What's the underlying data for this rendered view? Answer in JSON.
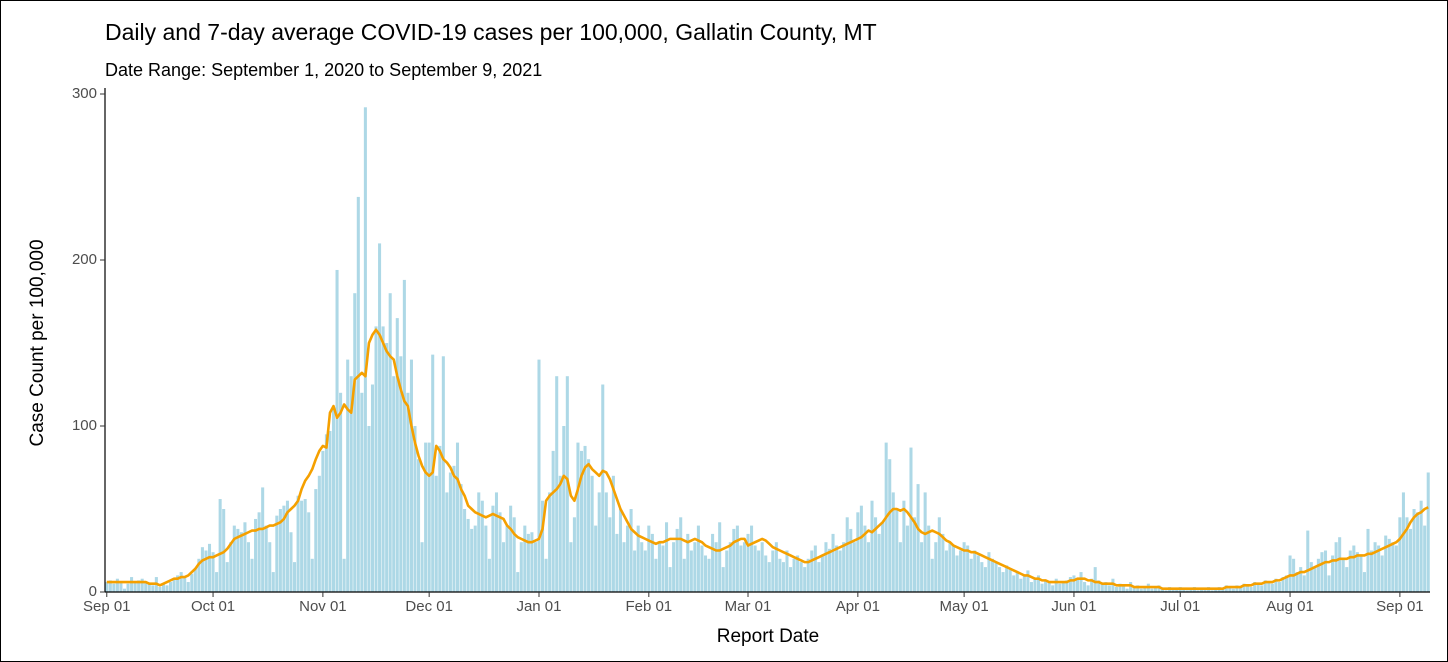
{
  "chart_data": {
    "type": "bar",
    "title": "Daily and 7-day average COVID-19 cases per 100,000, Gallatin County, MT",
    "subtitle": "Date Range: September 1, 2020 to September 9, 2021",
    "x_label": "Report Date",
    "y_label": "Case Count per 100,000",
    "ylim": [
      0,
      300
    ],
    "yticks": [
      0,
      100,
      200,
      300
    ],
    "categories": [
      "Sep 01",
      null,
      null,
      null,
      null,
      null,
      null,
      null,
      null,
      null,
      null,
      null,
      null,
      null,
      null,
      null,
      null,
      null,
      null,
      null,
      null,
      null,
      null,
      null,
      null,
      null,
      null,
      null,
      null,
      null,
      "Oct 01",
      null,
      null,
      null,
      null,
      null,
      null,
      null,
      null,
      null,
      null,
      null,
      null,
      null,
      null,
      null,
      null,
      null,
      null,
      null,
      null,
      null,
      null,
      null,
      null,
      null,
      null,
      null,
      null,
      null,
      null,
      "Nov 01",
      null,
      null,
      null,
      null,
      null,
      null,
      null,
      null,
      null,
      null,
      null,
      null,
      null,
      null,
      null,
      null,
      null,
      null,
      null,
      null,
      null,
      null,
      null,
      null,
      null,
      null,
      null,
      null,
      null,
      "Dec 01",
      null,
      null,
      null,
      null,
      null,
      null,
      null,
      null,
      null,
      null,
      null,
      null,
      null,
      null,
      null,
      null,
      null,
      null,
      null,
      null,
      null,
      null,
      null,
      null,
      null,
      null,
      null,
      null,
      null,
      null,
      "Jan 01",
      null,
      null,
      null,
      null,
      null,
      null,
      null,
      null,
      null,
      null,
      null,
      null,
      null,
      null,
      null,
      null,
      null,
      null,
      null,
      null,
      null,
      null,
      null,
      null,
      null,
      null,
      null,
      null,
      null,
      null,
      "Feb 01",
      null,
      null,
      null,
      null,
      null,
      null,
      null,
      null,
      null,
      null,
      null,
      null,
      null,
      null,
      null,
      null,
      null,
      null,
      null,
      null,
      null,
      null,
      null,
      null,
      null,
      null,
      null,
      "Mar 01",
      null,
      null,
      null,
      null,
      null,
      null,
      null,
      null,
      null,
      null,
      null,
      null,
      null,
      null,
      null,
      null,
      null,
      null,
      null,
      null,
      null,
      null,
      null,
      null,
      null,
      null,
      null,
      null,
      null,
      null,
      "Apr 01",
      null,
      null,
      null,
      null,
      null,
      null,
      null,
      null,
      null,
      null,
      null,
      null,
      null,
      null,
      null,
      null,
      null,
      null,
      null,
      null,
      null,
      null,
      null,
      null,
      null,
      null,
      null,
      null,
      null,
      "May 01",
      null,
      null,
      null,
      null,
      null,
      null,
      null,
      null,
      null,
      null,
      null,
      null,
      null,
      null,
      null,
      null,
      null,
      null,
      null,
      null,
      null,
      null,
      null,
      null,
      null,
      null,
      null,
      null,
      null,
      null,
      "Jun 01",
      null,
      null,
      null,
      null,
      null,
      null,
      null,
      null,
      null,
      null,
      null,
      null,
      null,
      null,
      null,
      null,
      null,
      null,
      null,
      null,
      null,
      null,
      null,
      null,
      null,
      null,
      null,
      null,
      null,
      "Jul 01",
      null,
      null,
      null,
      null,
      null,
      null,
      null,
      null,
      null,
      null,
      null,
      null,
      null,
      null,
      null,
      null,
      null,
      null,
      null,
      null,
      null,
      null,
      null,
      null,
      null,
      null,
      null,
      null,
      null,
      null,
      "Aug 01",
      null,
      null,
      null,
      null,
      null,
      null,
      null,
      null,
      null,
      null,
      null,
      null,
      null,
      null,
      null,
      null,
      null,
      null,
      null,
      null,
      null,
      null,
      null,
      null,
      null,
      null,
      null,
      null,
      null,
      null,
      "Sep 01",
      null,
      null,
      null,
      null,
      null,
      null,
      null,
      null
    ],
    "series": [
      {
        "type": "bar",
        "color": "#add8e6",
        "values": [
          6,
          7,
          5,
          8,
          6,
          2,
          5,
          9,
          6,
          7,
          8,
          6,
          5,
          4,
          9,
          3,
          5,
          4,
          6,
          8,
          10,
          12,
          9,
          6,
          11,
          14,
          20,
          27,
          25,
          29,
          24,
          12,
          56,
          50,
          18,
          30,
          40,
          38,
          36,
          42,
          30,
          20,
          44,
          48,
          63,
          40,
          30,
          12,
          46,
          50,
          52,
          55,
          36,
          18,
          58,
          55,
          56,
          48,
          20,
          62,
          70,
          85,
          95,
          97,
          110,
          194,
          120,
          20,
          140,
          130,
          180,
          238,
          120,
          292,
          100,
          125,
          160,
          210,
          160,
          150,
          180,
          130,
          165,
          142,
          188,
          120,
          140,
          100,
          80,
          30,
          90,
          90,
          143,
          70,
          88,
          142,
          60,
          72,
          76,
          90,
          65,
          50,
          44,
          38,
          40,
          60,
          55,
          40,
          20,
          52,
          60,
          48,
          30,
          40,
          52,
          45,
          12,
          30,
          40,
          35,
          36,
          30,
          140,
          55,
          20,
          60,
          85,
          130,
          70,
          100,
          130,
          30,
          45,
          90,
          85,
          88,
          80,
          70,
          40,
          60,
          125,
          60,
          45,
          70,
          35,
          50,
          30,
          40,
          50,
          25,
          40,
          30,
          25,
          40,
          35,
          20,
          30,
          28,
          42,
          15,
          30,
          38,
          45,
          20,
          35,
          25,
          30,
          40,
          28,
          22,
          20,
          35,
          30,
          42,
          15,
          25,
          30,
          38,
          40,
          28,
          30,
          35,
          40,
          28,
          25,
          30,
          22,
          18,
          25,
          30,
          20,
          18,
          25,
          15,
          20,
          22,
          18,
          15,
          20,
          25,
          28,
          18,
          22,
          30,
          26,
          35,
          28,
          25,
          30,
          45,
          38,
          30,
          48,
          52,
          40,
          30,
          55,
          45,
          35,
          42,
          90,
          80,
          60,
          50,
          30,
          55,
          40,
          87,
          45,
          65,
          30,
          60,
          40,
          20,
          30,
          45,
          35,
          25,
          30,
          28,
          22,
          25,
          30,
          28,
          20,
          25,
          22,
          18,
          15,
          24,
          20,
          18,
          15,
          12,
          16,
          14,
          10,
          12,
          8,
          10,
          13,
          6,
          8,
          10,
          5,
          7,
          6,
          4,
          8,
          5,
          6,
          7,
          9,
          10,
          8,
          12,
          6,
          4,
          8,
          15,
          7,
          5,
          6,
          4,
          8,
          3,
          5,
          4,
          2,
          6,
          3,
          4,
          2,
          3,
          5,
          2,
          3,
          4,
          2,
          1,
          3,
          2,
          2,
          3,
          2,
          1,
          2,
          3,
          1,
          2,
          2,
          3,
          1,
          2,
          3,
          2,
          4,
          3,
          2,
          4,
          3,
          5,
          4,
          3,
          6,
          5,
          4,
          7,
          6,
          5,
          8,
          6,
          9,
          10,
          22,
          20,
          12,
          15,
          10,
          37,
          18,
          15,
          20,
          24,
          25,
          10,
          22,
          30,
          33,
          20,
          15,
          25,
          28,
          24,
          22,
          12,
          38,
          25,
          30,
          28,
          22,
          34,
          32,
          30,
          28,
          45,
          60,
          45,
          38,
          50,
          48,
          55,
          40,
          72
        ]
      },
      {
        "type": "line",
        "color": "#f5a000",
        "values": [
          6,
          6,
          6,
          6,
          6,
          6,
          6,
          6,
          6,
          6,
          6,
          6,
          5,
          5,
          5,
          4,
          5,
          6,
          7,
          8,
          8,
          9,
          9,
          10,
          12,
          14,
          17,
          19,
          20,
          21,
          21,
          22,
          23,
          24,
          26,
          29,
          32,
          33,
          34,
          35,
          36,
          37,
          37,
          38,
          38,
          39,
          40,
          40,
          41,
          42,
          44,
          48,
          50,
          52,
          55,
          62,
          67,
          70,
          74,
          80,
          85,
          88,
          87,
          108,
          112,
          105,
          108,
          113,
          110,
          108,
          128,
          130,
          132,
          130,
          150,
          155,
          158,
          155,
          150,
          145,
          142,
          140,
          130,
          122,
          115,
          112,
          100,
          90,
          82,
          76,
          72,
          70,
          72,
          88,
          85,
          80,
          78,
          75,
          70,
          68,
          62,
          58,
          52,
          50,
          48,
          47,
          46,
          45,
          46,
          47,
          46,
          45,
          44,
          40,
          38,
          35,
          33,
          32,
          31,
          30,
          30,
          31,
          32,
          38,
          55,
          58,
          60,
          62,
          65,
          70,
          68,
          58,
          55,
          62,
          70,
          75,
          77,
          74,
          72,
          70,
          73,
          72,
          68,
          62,
          56,
          50,
          46,
          42,
          38,
          36,
          34,
          33,
          32,
          31,
          30,
          29,
          30,
          30,
          31,
          32,
          32,
          32,
          32,
          31,
          30,
          31,
          32,
          31,
          30,
          28,
          27,
          26,
          25,
          25,
          26,
          27,
          28,
          30,
          31,
          32,
          32,
          28,
          29,
          30,
          31,
          32,
          31,
          29,
          27,
          26,
          25,
          24,
          23,
          22,
          21,
          20,
          19,
          18,
          18,
          19,
          20,
          21,
          22,
          23,
          24,
          25,
          26,
          27,
          28,
          29,
          30,
          31,
          32,
          33,
          35,
          37,
          36,
          38,
          40,
          42,
          45,
          48,
          50,
          50,
          49,
          50,
          48,
          45,
          42,
          38,
          36,
          35,
          36,
          37,
          36,
          35,
          33,
          31,
          30,
          28,
          27,
          26,
          25,
          25,
          24,
          24,
          23,
          22,
          21,
          20,
          19,
          18,
          17,
          16,
          15,
          14,
          13,
          12,
          11,
          10,
          10,
          9,
          8,
          8,
          7,
          7,
          6,
          6,
          6,
          6,
          6,
          6,
          7,
          7,
          8,
          8,
          8,
          7,
          7,
          6,
          6,
          5,
          5,
          5,
          5,
          4,
          4,
          4,
          4,
          4,
          3,
          3,
          3,
          3,
          3,
          3,
          3,
          3,
          2,
          2,
          2,
          2,
          2,
          2,
          2,
          2,
          2,
          2,
          2,
          2,
          2,
          2,
          2,
          2,
          2,
          2,
          3,
          3,
          3,
          3,
          3,
          4,
          4,
          4,
          5,
          5,
          5,
          6,
          6,
          6,
          7,
          7,
          8,
          9,
          10,
          10,
          11,
          12,
          12,
          13,
          14,
          15,
          16,
          17,
          18,
          18,
          19,
          19,
          20,
          20,
          20,
          21,
          21,
          22,
          22,
          22,
          23,
          23,
          24,
          25,
          26,
          27,
          28,
          29,
          30,
          32,
          35,
          38,
          42,
          45,
          47,
          48,
          50,
          51
        ]
      }
    ]
  }
}
